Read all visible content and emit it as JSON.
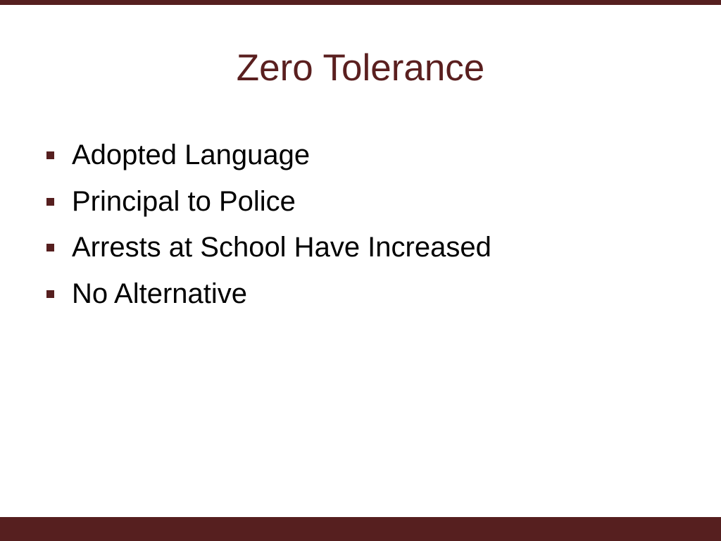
{
  "slide": {
    "title": "Zero Tolerance",
    "bullets": [
      "Adopted Language",
      "Principal to Police",
      "Arrests at School Have Increased",
      "No Alternative"
    ],
    "accent_color": "#561f1f",
    "bullet_icon": "square-bullet-icon"
  }
}
